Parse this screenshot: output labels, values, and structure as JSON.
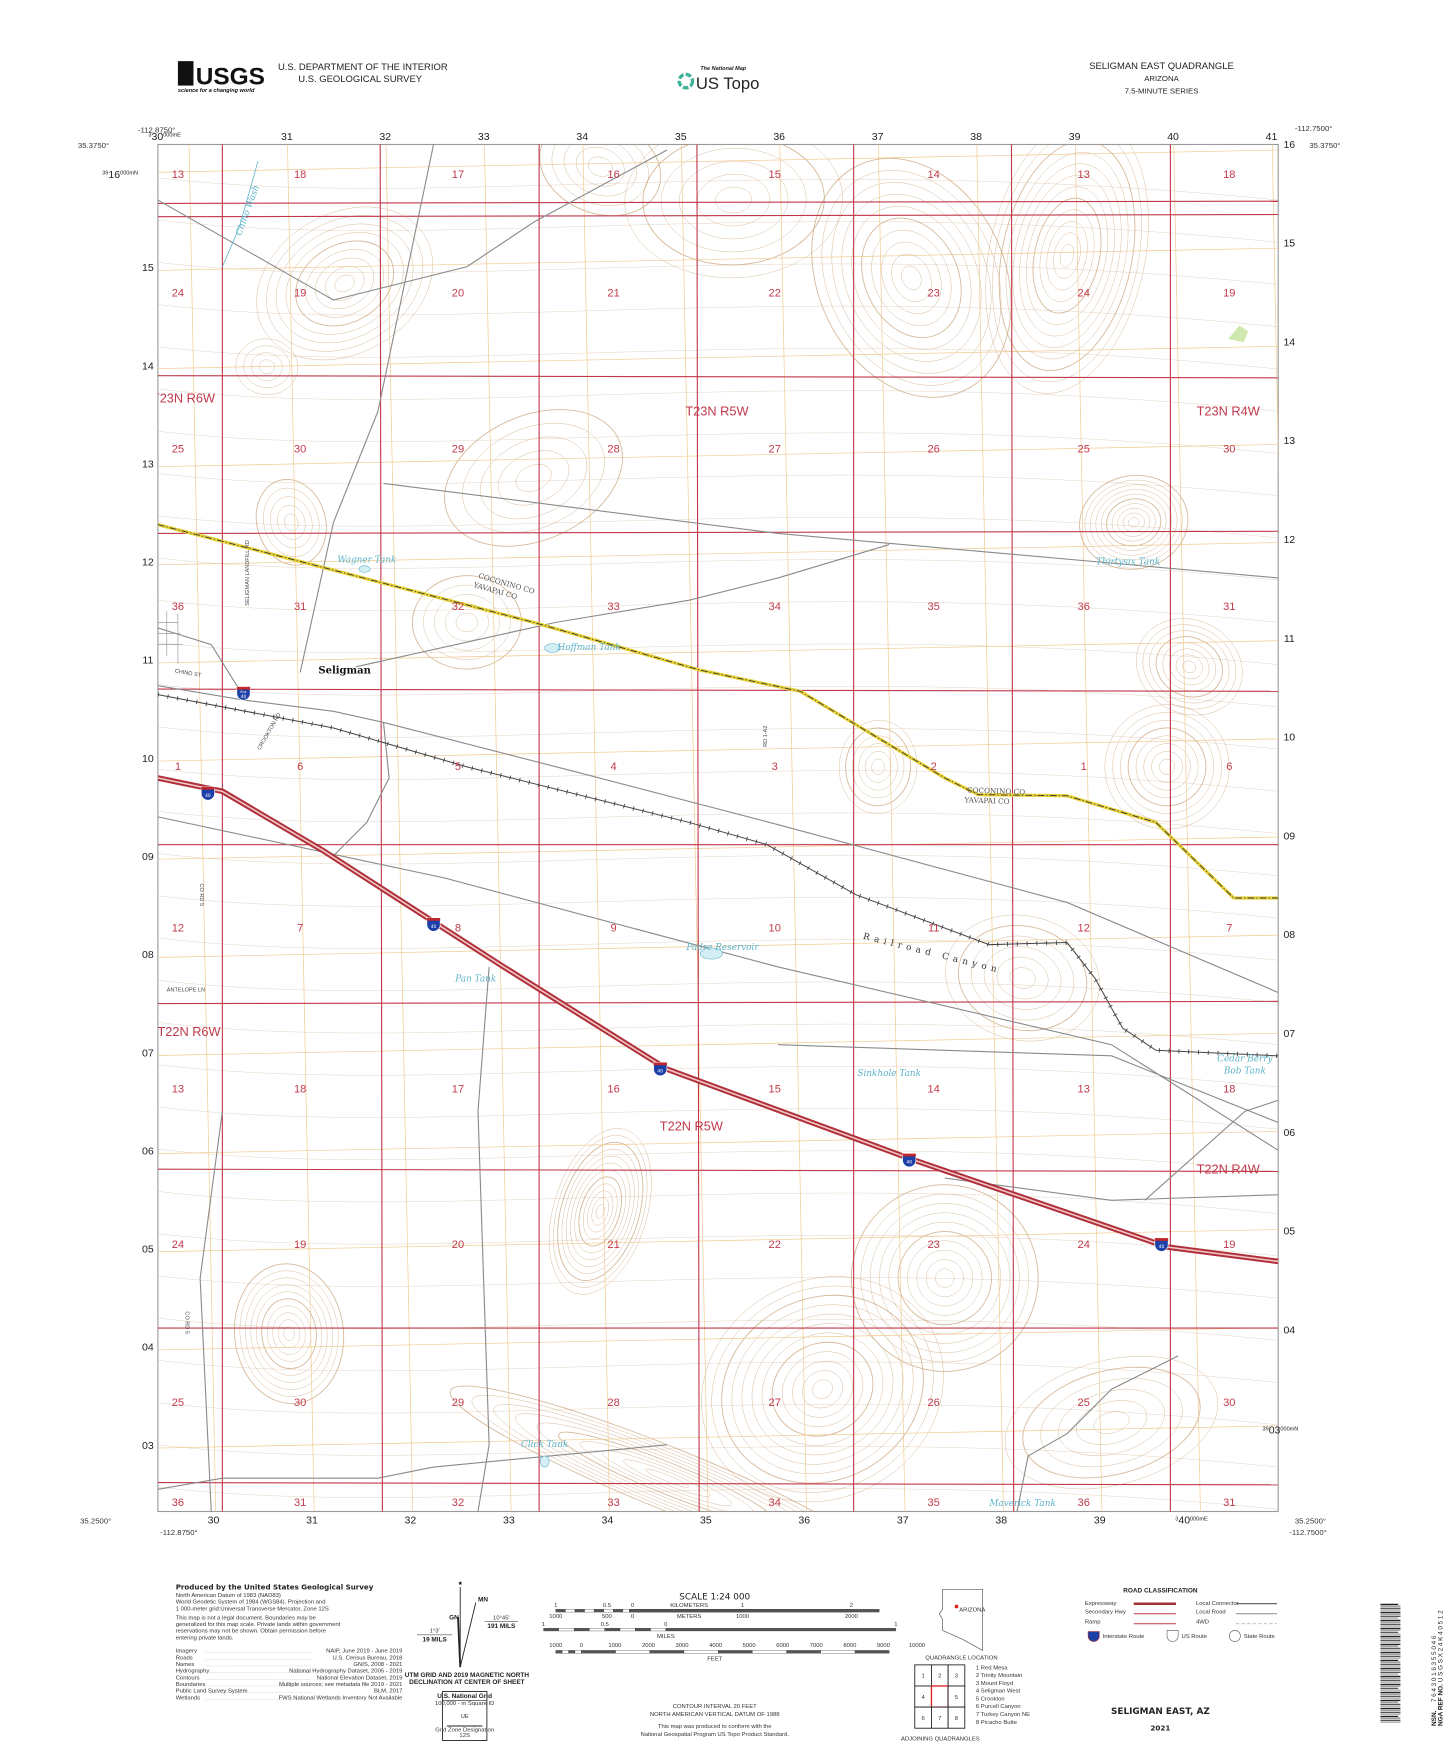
{
  "header": {
    "usgs_logo": "USGS",
    "usgs_tagline": "science for a changing world",
    "agency_line1": "U.S. DEPARTMENT OF THE INTERIOR",
    "agency_line2": "U.S. GEOLOGICAL SURVEY",
    "national_map": "The National Map",
    "us_topo": "US Topo",
    "quad_title": "SELIGMAN EAST QUADRANGLE",
    "state": "ARIZONA",
    "series": "7.5-MINUTE SERIES"
  },
  "map": {
    "corners": {
      "nw_lon": "-112.8750°",
      "nw_lat": "35.3750°",
      "ne_lon": "-112.7500°",
      "ne_lat": "35.3750°",
      "sw_lon": "-112.8750°",
      "sw_lat": "35.2500°",
      "se_lon": "-112.7500°",
      "se_lat": "35.2500°"
    },
    "utm_full": {
      "nw_easting": {
        "prefix": "3",
        "main": "30",
        "suffix": "000mE"
      },
      "nw_northing": {
        "prefix": "39",
        "main": "16",
        "suffix": "000mN"
      },
      "se_easting": {
        "prefix": "3",
        "main": "40",
        "suffix": "000mE"
      },
      "se_northing": {
        "prefix": "39",
        "main": "03",
        "suffix": "000mN"
      }
    },
    "eastings_top": [
      "31",
      "32",
      "33",
      "34",
      "35",
      "36",
      "37",
      "38",
      "39",
      "40",
      "41"
    ],
    "eastings_bottom": [
      "30",
      "31",
      "32",
      "33",
      "34",
      "35",
      "36",
      "37",
      "38",
      "39"
    ],
    "northings_left": [
      "15",
      "14",
      "13",
      "12",
      "11",
      "10",
      "09",
      "08",
      "07",
      "06",
      "05",
      "04",
      "03"
    ],
    "northings_right": [
      "16",
      "15",
      "14",
      "13",
      "12",
      "11",
      "10",
      "09",
      "08",
      "07",
      "06",
      "05",
      "04"
    ],
    "sections": [
      [
        "13",
        "18",
        "17",
        "16",
        "15",
        "14",
        "13",
        "18"
      ],
      [
        "24",
        "19",
        "20",
        "21",
        "22",
        "23",
        "24",
        "19"
      ],
      [
        "25",
        "30",
        "29",
        "28",
        "27",
        "26",
        "25",
        "30"
      ],
      [
        "36",
        "31",
        "32",
        "33",
        "34",
        "35",
        "36",
        "31"
      ],
      [
        "1",
        "6",
        "5",
        "4",
        "3",
        "2",
        "1",
        "6"
      ],
      [
        "12",
        "7",
        "8",
        "9",
        "10",
        "11",
        "12",
        "7"
      ],
      [
        "13",
        "18",
        "17",
        "16",
        "15",
        "14",
        "13",
        "18"
      ],
      [
        "24",
        "19",
        "20",
        "21",
        "22",
        "23",
        "24",
        "19"
      ],
      [
        "25",
        "30",
        "29",
        "28",
        "27",
        "26",
        "25",
        "30"
      ],
      [
        "36",
        "31",
        "32",
        "33",
        "34",
        "35",
        "36",
        "31"
      ]
    ],
    "townships": [
      "T23N R6W",
      "T23N R5W",
      "T23N R4W",
      "T22N R6W",
      "T22N R5W",
      "T22N R4W"
    ],
    "places": {
      "town": "Seligman",
      "water": [
        "Chino Wash",
        "Wagner Tank",
        "Hoffman Tank",
        "Thirtysix Tank",
        "Padre Reservoir",
        "Pan Tank",
        "Sinkhole Tank",
        "Cedar Berry",
        "Bob Tank",
        "Click Tank",
        "Maverick Tank"
      ],
      "canyon": "Railroad Canyon",
      "roads": [
        "CHINO ST",
        "SELIGMAN LANDFILL RD",
        "CROOKTON RD",
        "ANTELOPE LN",
        "CO RD 5",
        "CO RD 5",
        "RD 1-A2"
      ],
      "county_north": "COCONINO CO",
      "county_south": "YAVAPAI CO",
      "interstate_number": "40",
      "business_label": "Bus"
    }
  },
  "footer": {
    "produced_by": "Produced by the United States Geological Survey",
    "datum_lines": [
      "North American Datum of 1983 (NAD83)",
      "World Geodetic System of 1984 (WGS84).  Projection and",
      "1 000-meter grid:Universal Transverse Mercator, Zone 12S"
    ],
    "disclaimer_lines": [
      "This map is not a legal document. Boundaries may be",
      "generalized for this map scale. Private lands within government",
      "reservations may not be shown. Obtain permission before",
      "entering private lands."
    ],
    "sources": [
      {
        "label": "Imagery",
        "value": "NAIP, June 2019 - June 2019"
      },
      {
        "label": "Roads",
        "value": "U.S. Census Bureau, 2018"
      },
      {
        "label": "Names",
        "value": "GNIS, 2008 - 2021"
      },
      {
        "label": "Hydrography",
        "value": "National Hydrography Dataset, 2005 - 2019"
      },
      {
        "label": "Contours",
        "value": "National Elevation Dataset, 2019"
      },
      {
        "label": "Boundaries",
        "value": "Multiple sources; see metadata file 2019 - 2021"
      },
      {
        "label": "Public Land Survey System",
        "value": "BLM, 2017"
      },
      {
        "label": "Wetlands",
        "value": "FWS National Wetlands Inventory Not Available"
      }
    ],
    "declination": {
      "mn": "MN",
      "gn": "GN",
      "gn_angle": "1°3'",
      "gn_mils": "19 MILS",
      "mn_angle": "10°45'",
      "mn_mils": "191 MILS",
      "caption_line1": "UTM GRID AND 2019 MAGNETIC NORTH",
      "caption_line2": "DECLINATION AT CENTER OF SHEET"
    },
    "usng": {
      "title": "U.S. National Grid",
      "square_id_label": "100,000 - m Square ID",
      "square_id": "UE",
      "gzd_label": "Grid Zone Designation",
      "gzd": "12S"
    },
    "scale": {
      "title": "SCALE 1:24 000",
      "km_ticks": [
        "1",
        "0.5",
        "0",
        "1",
        "2"
      ],
      "km_label": "KILOMETERS",
      "m_ticks": [
        "1000",
        "500",
        "0",
        "1000",
        "2000"
      ],
      "m_label": "METERS",
      "mi_ticks": [
        "1",
        "0.5",
        "0",
        "1"
      ],
      "mi_label": "MILES",
      "ft_ticks": [
        "1000",
        "0",
        "1000",
        "2000",
        "3000",
        "4000",
        "5000",
        "6000",
        "7000",
        "8000",
        "9000",
        "10000"
      ],
      "ft_label": "FEET",
      "contour_interval": "CONTOUR INTERVAL 20 FEET",
      "vertical_datum": "NORTH AMERICAN VERTICAL DATUM OF 1988",
      "standard_line1": "This map was produced to conform with the",
      "standard_line2": "National Geospatial Program US Topo Product Standard."
    },
    "quad_location": {
      "state": "ARIZONA",
      "caption": "QUADRANGLE LOCATION"
    },
    "adjoining": {
      "caption": "ADJOINING QUADRANGLES",
      "cells": [
        "1",
        "2",
        "3",
        "4",
        "",
        "5",
        "6",
        "7",
        "8"
      ],
      "names": [
        "1 Red Mesa",
        "2 Trinity Mountain",
        "3 Mount Floyd",
        "4 Seligman West",
        "5 Crookton",
        "6 Purcell Canyon",
        "7 Turkey Canyon NE",
        "8 Picacho Butte"
      ]
    },
    "road_classification": {
      "title": "ROAD CLASSIFICATION",
      "items": [
        "Expressway",
        "Secondary Hwy",
        "Ramp",
        "Local Connector",
        "Local Road",
        "4WD"
      ],
      "routes": [
        "Interstate Route",
        "US Route",
        "State Route"
      ]
    },
    "sheet_name": "SELIGMAN EAST, AZ",
    "year": "2021",
    "barcode": {
      "nsn_label": "NSN.",
      "nsn": "7643016355046",
      "nga_label": "NGA REF NO.",
      "nga": "USGSX24K40512"
    }
  },
  "colors": {
    "section_line": "#c0394b",
    "utm_grid": "#efc98d",
    "contour": "#c8a27a",
    "water": "#5bb3c9",
    "interstate": "#b0303a",
    "county_line": "#e8d23a",
    "road": "#8a8a8a"
  }
}
